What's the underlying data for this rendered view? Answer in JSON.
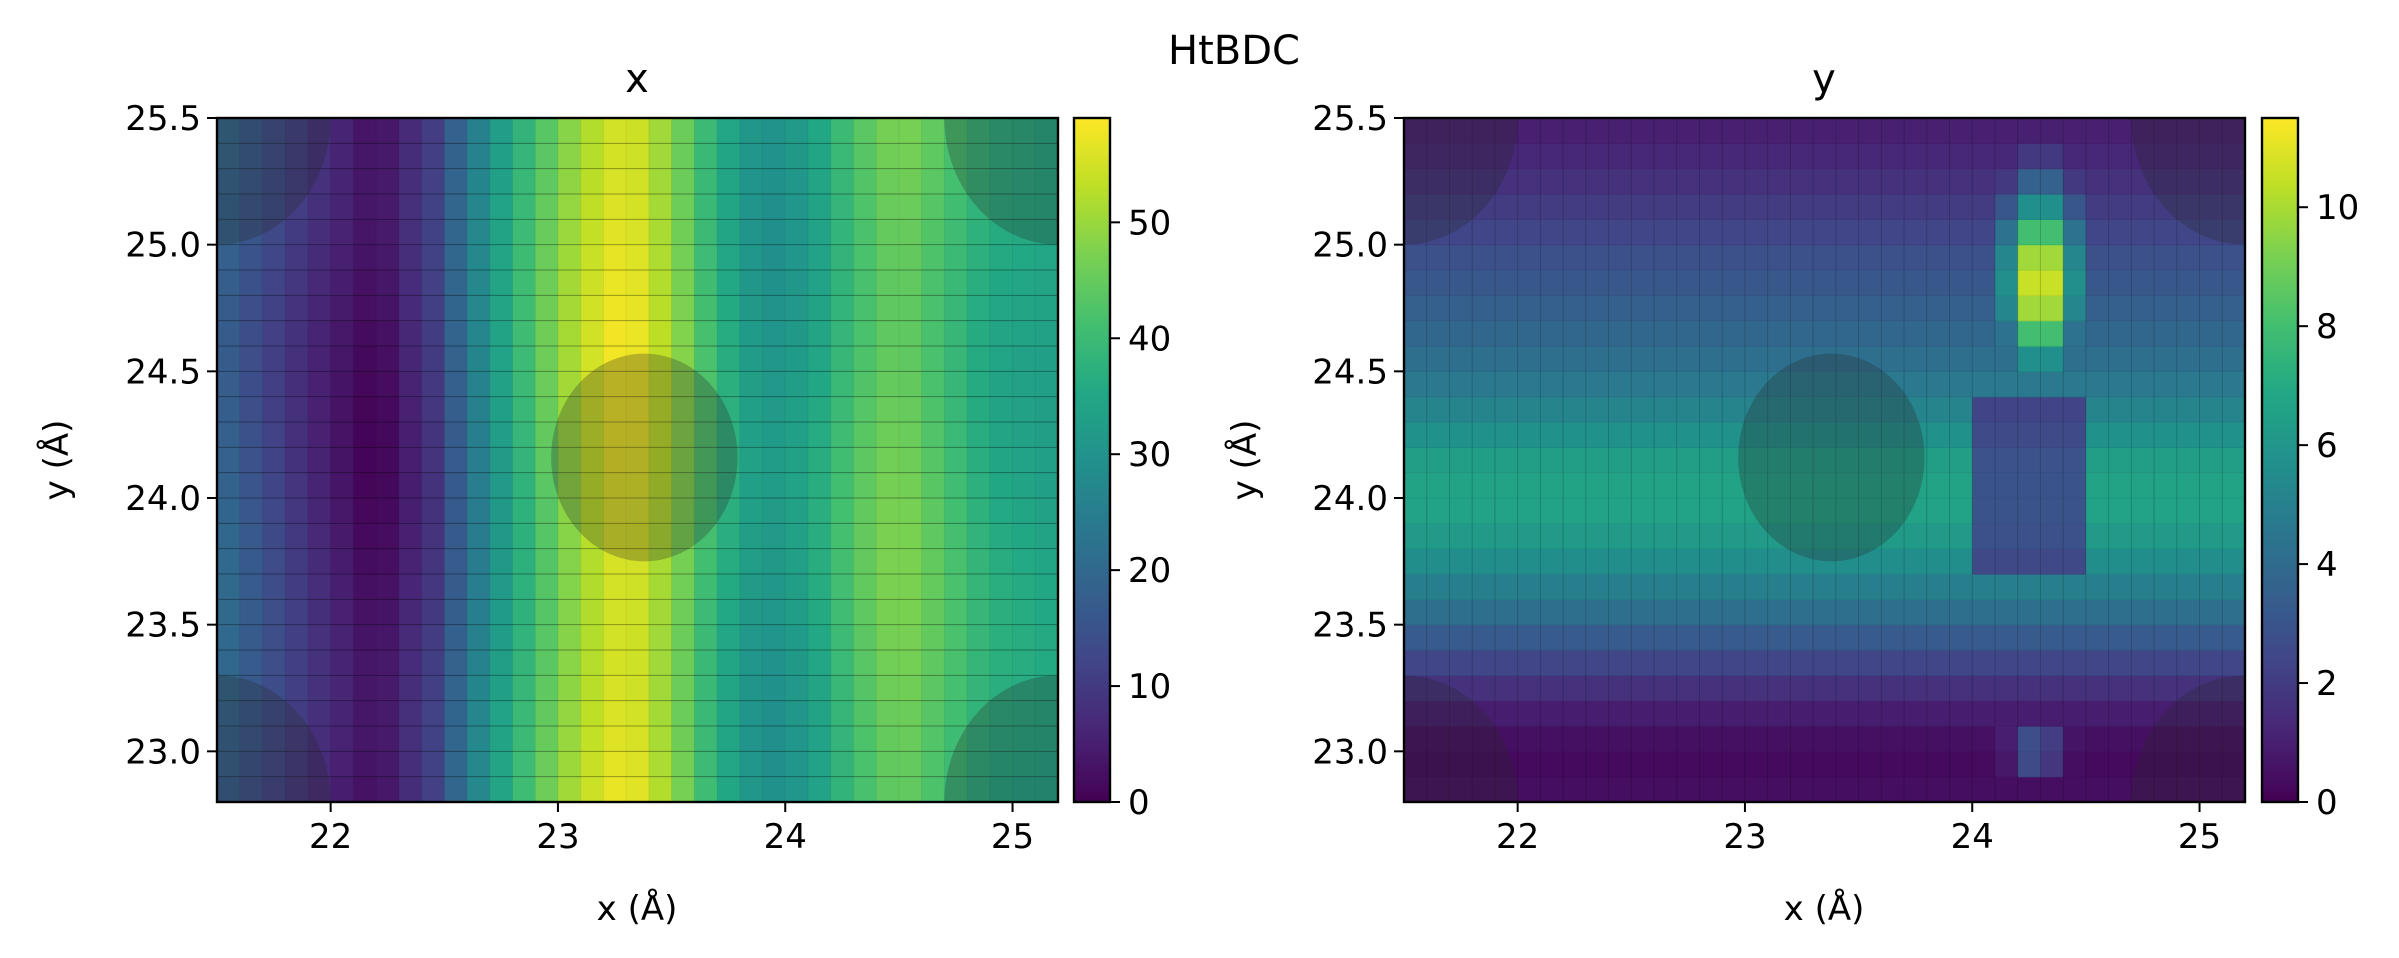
{
  "figure_title": "HtBDC",
  "chart_data": [
    {
      "type": "heatmap",
      "title": "x",
      "xlabel": "x (Å)",
      "ylabel": "y (Å)",
      "xlim": [
        21.5,
        25.2
      ],
      "ylim": [
        22.8,
        25.5
      ],
      "xticks": [
        22,
        23,
        24,
        25
      ],
      "xtick_labels": [
        "22",
        "23",
        "24",
        "25"
      ],
      "yticks": [
        23.0,
        23.5,
        24.0,
        24.5,
        25.0,
        25.5
      ],
      "ytick_labels": [
        "23.0",
        "23.5",
        "24.0",
        "24.5",
        "25.0",
        "25.5"
      ],
      "colormap": "viridis",
      "colorbar_range": [
        0,
        59
      ],
      "colorbar_ticks": [
        0,
        10,
        20,
        30,
        40,
        50
      ],
      "colorbar_tick_labels": [
        "0",
        "10",
        "20",
        "30",
        "40",
        "50"
      ],
      "grid_cells": {
        "nx": 37,
        "ny": 27
      },
      "value_profile_along_x": {
        "x": [
          21.5,
          21.9,
          22.2,
          22.45,
          22.7,
          22.9,
          23.1,
          23.3,
          23.5,
          23.7,
          23.9,
          24.1,
          24.3,
          24.5,
          24.7,
          24.9,
          25.2
        ],
        "values": [
          20,
          8,
          1,
          10,
          30,
          42,
          52,
          58,
          50,
          38,
          30,
          33,
          42,
          47,
          42,
          36,
          34
        ]
      },
      "shaded_circles": [
        {
          "x": 23.38,
          "y": 24.16,
          "r": 0.41
        },
        {
          "x": 21.5,
          "y": 25.5,
          "r": 0.5
        },
        {
          "x": 25.2,
          "y": 25.5,
          "r": 0.5
        },
        {
          "x": 21.5,
          "y": 22.8,
          "r": 0.5
        },
        {
          "x": 25.2,
          "y": 22.8,
          "r": 0.5
        }
      ]
    },
    {
      "type": "heatmap",
      "title": "y",
      "xlabel": "x (Å)",
      "ylabel": "y (Å)",
      "xlim": [
        21.5,
        25.2
      ],
      "ylim": [
        22.8,
        25.5
      ],
      "xticks": [
        22,
        23,
        24,
        25
      ],
      "xtick_labels": [
        "22",
        "23",
        "24",
        "25"
      ],
      "yticks": [
        23.0,
        23.5,
        24.0,
        24.5,
        25.0,
        25.5
      ],
      "ytick_labels": [
        "23.0",
        "23.5",
        "24.0",
        "24.5",
        "25.0",
        "25.5"
      ],
      "colormap": "viridis",
      "colorbar_range": [
        0,
        11.5
      ],
      "colorbar_ticks": [
        0,
        2,
        4,
        6,
        8,
        10
      ],
      "colorbar_tick_labels": [
        "0",
        "2",
        "4",
        "6",
        "8",
        "10"
      ],
      "grid_cells": {
        "nx": 37,
        "ny": 27
      },
      "value_profile_along_y": {
        "y": [
          22.8,
          22.95,
          23.1,
          23.25,
          23.4,
          23.55,
          23.7,
          23.85,
          24.0,
          24.15,
          24.3,
          24.5,
          24.7,
          24.9,
          25.1,
          25.3,
          25.5
        ],
        "values": [
          0.5,
          0.3,
          0.6,
          1.6,
          2.8,
          4.2,
          5.3,
          6.2,
          6.8,
          6.4,
          5.4,
          4.4,
          3.6,
          3.0,
          2.2,
          1.4,
          0.9
        ]
      },
      "anomaly_column": {
        "x_range": [
          24.05,
          24.5
        ],
        "peak_value": 11.4,
        "peak_at": {
          "x": 24.3,
          "y": 24.85
        }
      },
      "shaded_circles": [
        {
          "x": 23.38,
          "y": 24.16,
          "r": 0.41
        },
        {
          "x": 21.5,
          "y": 25.5,
          "r": 0.5
        },
        {
          "x": 25.2,
          "y": 25.5,
          "r": 0.5
        },
        {
          "x": 21.5,
          "y": 22.8,
          "r": 0.5
        },
        {
          "x": 25.2,
          "y": 22.8,
          "r": 0.5
        }
      ]
    }
  ]
}
